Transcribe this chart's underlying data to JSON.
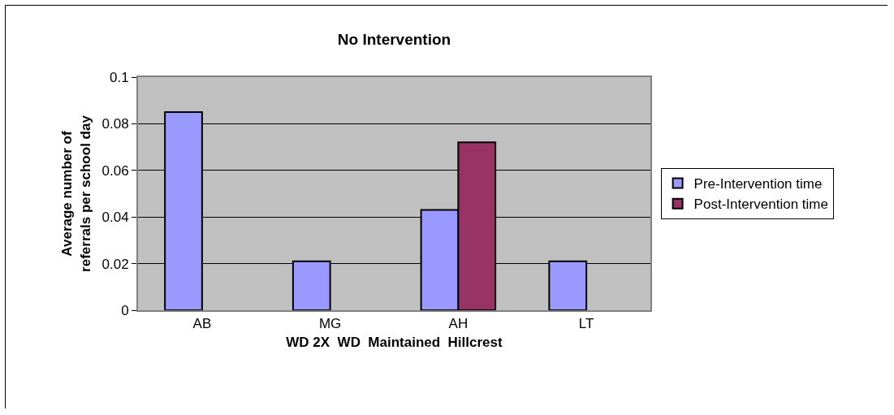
{
  "chart_data": {
    "type": "bar",
    "title": "No Intervention",
    "xlabel": "WD 2X  WD  Maintained  Hillcrest",
    "ylabel": "Average number of referrals per school day",
    "categories": [
      "AB",
      "MG",
      "AH",
      "LT"
    ],
    "series": [
      {
        "name": "Pre-Intervention time",
        "color": "#9999ff",
        "values": [
          0.085,
          0.021,
          0.043,
          0.021
        ]
      },
      {
        "name": "Post-Intervention time",
        "color": "#993366",
        "values": [
          null,
          null,
          0.072,
          null
        ]
      }
    ],
    "ylim": [
      0,
      0.1
    ],
    "yticks": [
      0,
      0.02,
      0.04,
      0.06,
      0.08,
      0.1
    ],
    "grid": "y",
    "legend": "right"
  }
}
